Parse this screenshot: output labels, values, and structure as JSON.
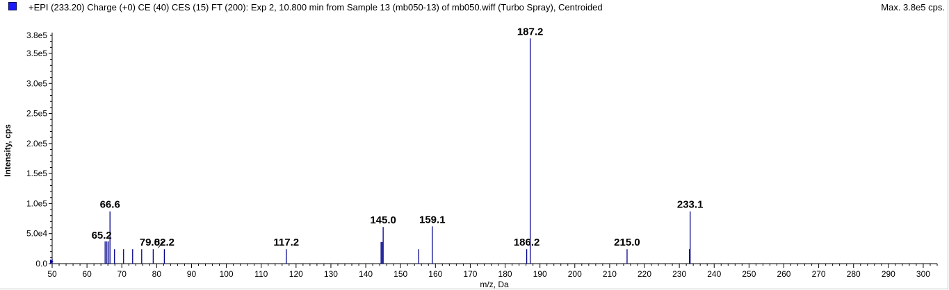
{
  "header": {
    "title": "+EPI (233.20) Charge (+0) CE (40) CES (15) FT (200): Exp 2, 10.800 min from Sample 13 (mb050-13) of mb050.wiff (Turbo Spray), Centroided",
    "max_label": "Max. 3.8e5 cps.",
    "swatch_color": "#1a1aff"
  },
  "chart_data": {
    "type": "bar",
    "xlabel": "m/z, Da",
    "ylabel": "Intensity, cps",
    "xlim": [
      50,
      304
    ],
    "ylim": [
      0,
      380000
    ],
    "grid": false,
    "line_color": "#00008b",
    "x_ticks": [
      50,
      60,
      70,
      80,
      90,
      100,
      110,
      120,
      130,
      140,
      150,
      160,
      170,
      180,
      190,
      200,
      210,
      220,
      230,
      240,
      250,
      260,
      270,
      280,
      290,
      300
    ],
    "x_tick_labels": [
      "50",
      "60",
      "70",
      "80",
      "90",
      "100",
      "110",
      "120",
      "130",
      "140",
      "150",
      "160",
      "170",
      "180",
      "190",
      "200",
      "210",
      "220",
      "230",
      "240",
      "250",
      "260",
      "270",
      "280",
      "290",
      "300"
    ],
    "y_ticks": [
      0,
      50000,
      100000,
      150000,
      200000,
      250000,
      300000,
      350000,
      380000
    ],
    "y_tick_labels": [
      "0.0",
      "5.0e4",
      "1.0e5",
      "1.5e5",
      "2.0e5",
      "2.5e5",
      "3.0e5",
      "3.5e5",
      "3.8e5"
    ],
    "peaks": [
      {
        "mz": 50.0,
        "intensity": 8000
      },
      {
        "mz": 65.2,
        "intensity": 37000
      },
      {
        "mz": 65.7,
        "intensity": 37000
      },
      {
        "mz": 66.1,
        "intensity": 37000
      },
      {
        "mz": 66.6,
        "intensity": 87000
      },
      {
        "mz": 67.9,
        "intensity": 24000
      },
      {
        "mz": 70.5,
        "intensity": 24000
      },
      {
        "mz": 73.1,
        "intensity": 24000
      },
      {
        "mz": 75.7,
        "intensity": 24000
      },
      {
        "mz": 79.0,
        "intensity": 24000
      },
      {
        "mz": 82.2,
        "intensity": 24000
      },
      {
        "mz": 117.2,
        "intensity": 24000
      },
      {
        "mz": 144.4,
        "intensity": 36000
      },
      {
        "mz": 144.7,
        "intensity": 36000
      },
      {
        "mz": 145.0,
        "intensity": 61000
      },
      {
        "mz": 155.2,
        "intensity": 24000
      },
      {
        "mz": 159.1,
        "intensity": 62000
      },
      {
        "mz": 186.2,
        "intensity": 24000
      },
      {
        "mz": 187.2,
        "intensity": 375000
      },
      {
        "mz": 215.0,
        "intensity": 24000
      },
      {
        "mz": 232.9,
        "intensity": 24000
      },
      {
        "mz": 233.1,
        "intensity": 87000
      }
    ],
    "annotations": [
      {
        "text": "187.2",
        "mz": 187.2,
        "intensity": 375000
      },
      {
        "text": "66.6",
        "mz": 66.6,
        "intensity": 87000
      },
      {
        "text": "233.1",
        "mz": 233.1,
        "intensity": 87000
      },
      {
        "text": "145.0",
        "mz": 145.0,
        "intensity": 61000
      },
      {
        "text": "159.1",
        "mz": 159.1,
        "intensity": 62000
      },
      {
        "text": "65.2",
        "mz": 65.2,
        "intensity": 37000
      },
      {
        "text": "79.0",
        "mz": 79.0,
        "intensity": 24000
      },
      {
        "text": "82.2",
        "mz": 82.2,
        "intensity": 24000
      },
      {
        "text": "117.2",
        "mz": 117.2,
        "intensity": 24000
      },
      {
        "text": "186.2",
        "mz": 186.2,
        "intensity": 24000
      },
      {
        "text": "215.0",
        "mz": 215.0,
        "intensity": 24000
      }
    ]
  }
}
